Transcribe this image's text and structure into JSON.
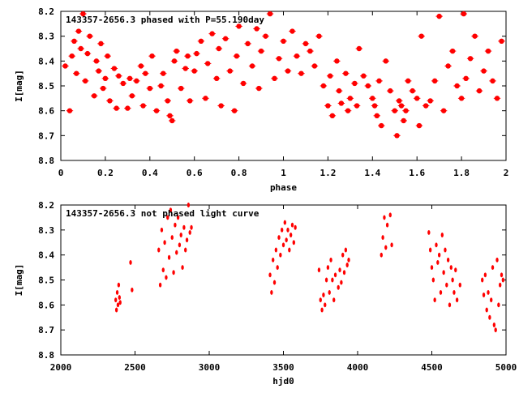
{
  "chart_data": [
    {
      "type": "scatter",
      "title": "143357-2656.3 phased with P=55.190day",
      "xlabel": "phase",
      "ylabel": "I[mag]",
      "xlim": [
        0,
        2
      ],
      "ylim": [
        8.8,
        8.2
      ],
      "y_inverted": true,
      "x_ticks": [
        "0",
        "0.2",
        "0.4",
        "0.6",
        "0.8",
        "1",
        "1.2",
        "1.4",
        "1.6",
        "1.8",
        "2"
      ],
      "y_ticks": [
        "8.2",
        "8.3",
        "8.4",
        "8.5",
        "8.6",
        "8.7",
        "8.8"
      ],
      "marker_color": "#ff0000",
      "series": [
        {
          "x": [
            0.02,
            0.04,
            0.05,
            0.06,
            0.07,
            0.08,
            0.09,
            0.1,
            0.11,
            0.12,
            0.13,
            0.15,
            0.16,
            0.17,
            0.18,
            0.19,
            0.2,
            0.21,
            0.22,
            0.24,
            0.25,
            0.26,
            0.28,
            0.3,
            0.31,
            0.32,
            0.34,
            0.36,
            0.37,
            0.38,
            0.4,
            0.41,
            0.43,
            0.45,
            0.46,
            0.48,
            0.49,
            0.5,
            0.51,
            0.52,
            0.54,
            0.56,
            0.57,
            0.58,
            0.6,
            0.61,
            0.63,
            0.65,
            0.66,
            0.68,
            0.7,
            0.71,
            0.72,
            0.74,
            0.76,
            0.78,
            0.79,
            0.8,
            0.82,
            0.84,
            0.86,
            0.88,
            0.89,
            0.9,
            0.92,
            0.94,
            0.96,
            0.98,
            1.0,
            1.02,
            1.04,
            1.06,
            1.08,
            1.1,
            1.12,
            1.14,
            1.16,
            1.18,
            1.2,
            1.21,
            1.22,
            1.24,
            1.25,
            1.26,
            1.28,
            1.29,
            1.3,
            1.32,
            1.33,
            1.34,
            1.36,
            1.38,
            1.4,
            1.41,
            1.42,
            1.43,
            1.44,
            1.46,
            1.48,
            1.5,
            1.51,
            1.52,
            1.53,
            1.54,
            1.55,
            1.56,
            1.58,
            1.6,
            1.61,
            1.62,
            1.64,
            1.66,
            1.68,
            1.7,
            1.72,
            1.74,
            1.76,
            1.78,
            1.8,
            1.81,
            1.82,
            1.84,
            1.86,
            1.88,
            1.9,
            1.92,
            1.94,
            1.96,
            1.98
          ],
          "y": [
            8.42,
            8.6,
            8.38,
            8.32,
            8.45,
            8.28,
            8.35,
            8.21,
            8.48,
            8.37,
            8.3,
            8.54,
            8.4,
            8.44,
            8.33,
            8.51,
            8.47,
            8.38,
            8.56,
            8.43,
            8.59,
            8.46,
            8.49,
            8.59,
            8.47,
            8.54,
            8.48,
            8.42,
            8.58,
            8.45,
            8.51,
            8.38,
            8.6,
            8.5,
            8.45,
            8.56,
            8.62,
            8.64,
            8.4,
            8.36,
            8.51,
            8.43,
            8.38,
            8.56,
            8.44,
            8.37,
            8.32,
            8.55,
            8.41,
            8.29,
            8.47,
            8.35,
            8.58,
            8.31,
            8.44,
            8.6,
            8.38,
            8.26,
            8.49,
            8.33,
            8.42,
            8.27,
            8.51,
            8.36,
            8.3,
            8.21,
            8.47,
            8.39,
            8.32,
            8.44,
            8.28,
            8.38,
            8.45,
            8.33,
            8.36,
            8.42,
            8.3,
            8.5,
            8.58,
            8.46,
            8.62,
            8.4,
            8.52,
            8.57,
            8.45,
            8.6,
            8.55,
            8.49,
            8.58,
            8.35,
            8.46,
            8.5,
            8.55,
            8.58,
            8.62,
            8.48,
            8.66,
            8.4,
            8.52,
            8.6,
            8.7,
            8.56,
            8.58,
            8.64,
            8.6,
            8.48,
            8.52,
            8.55,
            8.66,
            8.3,
            8.58,
            8.56,
            8.48,
            8.22,
            8.6,
            8.42,
            8.36,
            8.5,
            8.55,
            8.21,
            8.47,
            8.39,
            8.3,
            8.52,
            8.44,
            8.36,
            8.48,
            8.55,
            8.32
          ]
        }
      ],
      "annotation": "143357-2656.3 phased with P=55.190day"
    },
    {
      "type": "scatter",
      "title": "143357-2656.3 not phased light curve",
      "xlabel": "hjd0",
      "ylabel": "I[mag]",
      "xlim": [
        2000,
        5000
      ],
      "ylim": [
        8.8,
        8.2
      ],
      "y_inverted": true,
      "x_ticks": [
        "2000",
        "2500",
        "3000",
        "3500",
        "4000",
        "4500",
        "5000"
      ],
      "y_ticks": [
        "8.2",
        "8.3",
        "8.4",
        "8.5",
        "8.6",
        "8.7",
        "8.8"
      ],
      "marker_color": "#ff0000",
      "series": [
        {
          "x": [
            2370,
            2375,
            2380,
            2385,
            2390,
            2395,
            2400,
            2470,
            2480,
            2660,
            2670,
            2680,
            2690,
            2700,
            2710,
            2720,
            2730,
            2740,
            2750,
            2760,
            2770,
            2780,
            2790,
            2800,
            2810,
            2820,
            2830,
            2840,
            2850,
            2860,
            2870,
            2880,
            3410,
            3420,
            3430,
            3440,
            3450,
            3460,
            3470,
            3480,
            3490,
            3500,
            3510,
            3520,
            3530,
            3540,
            3550,
            3560,
            3570,
            3580,
            3740,
            3750,
            3760,
            3770,
            3780,
            3790,
            3800,
            3810,
            3820,
            3830,
            3840,
            3850,
            3870,
            3880,
            3890,
            3900,
            3910,
            3920,
            3930,
            3940,
            4160,
            4170,
            4180,
            4190,
            4200,
            4220,
            4230,
            4480,
            4490,
            4500,
            4510,
            4520,
            4530,
            4540,
            4550,
            4560,
            4570,
            4580,
            4590,
            4600,
            4610,
            4620,
            4630,
            4640,
            4650,
            4660,
            4670,
            4690,
            4840,
            4850,
            4860,
            4870,
            4880,
            4890,
            4900,
            4910,
            4920,
            4930,
            4940,
            4950,
            4960,
            4970,
            4980
          ],
          "y": [
            8.58,
            8.62,
            8.55,
            8.6,
            8.52,
            8.57,
            8.59,
            8.43,
            8.54,
            8.38,
            8.52,
            8.3,
            8.46,
            8.35,
            8.49,
            8.25,
            8.41,
            8.22,
            8.33,
            8.47,
            8.28,
            8.39,
            8.25,
            8.36,
            8.32,
            8.45,
            8.29,
            8.38,
            8.34,
            8.2,
            8.31,
            8.29,
            8.48,
            8.55,
            8.42,
            8.51,
            8.38,
            8.45,
            8.33,
            8.4,
            8.3,
            8.36,
            8.27,
            8.34,
            8.3,
            8.38,
            8.32,
            8.28,
            8.35,
            8.29,
            8.46,
            8.58,
            8.62,
            8.56,
            8.6,
            8.5,
            8.45,
            8.55,
            8.42,
            8.5,
            8.58,
            8.48,
            8.53,
            8.46,
            8.51,
            8.4,
            8.47,
            8.38,
            8.44,
            8.42,
            8.4,
            8.33,
            8.25,
            8.37,
            8.28,
            8.24,
            8.36,
            8.31,
            8.38,
            8.45,
            8.5,
            8.58,
            8.36,
            8.43,
            8.4,
            8.55,
            8.32,
            8.47,
            8.38,
            8.52,
            8.42,
            8.6,
            8.45,
            8.5,
            8.55,
            8.46,
            8.58,
            8.52,
            8.5,
            8.56,
            8.48,
            8.62,
            8.55,
            8.65,
            8.58,
            8.45,
            8.68,
            8.7,
            8.42,
            8.6,
            8.52,
            8.48,
            8.5
          ]
        }
      ],
      "annotation": "143357-2656.3 not phased light curve"
    }
  ]
}
